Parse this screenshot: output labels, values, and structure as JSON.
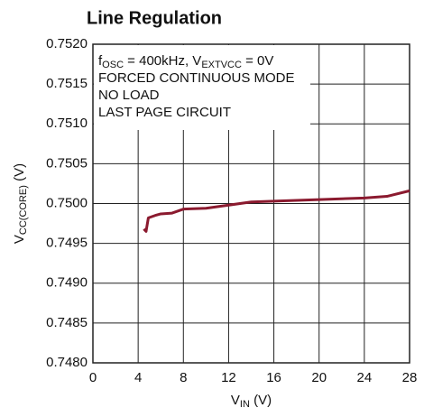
{
  "chart_data": {
    "type": "line",
    "title": "Line Regulation",
    "x_label": [
      "V",
      "IN",
      " (V)"
    ],
    "y_label": [
      "V",
      "CC(CORE)",
      " (V)"
    ],
    "annotations": [
      [
        "f",
        "OSC",
        " = 400kHz, V",
        "EXTVCC",
        " = 0V"
      ],
      [
        "FORCED CONTINUOUS MODE"
      ],
      [
        "NO LOAD"
      ],
      [
        "LAST PAGE CIRCUIT"
      ]
    ],
    "xlim": [
      0,
      28
    ],
    "xticks": [
      0,
      4,
      8,
      12,
      16,
      20,
      24,
      28
    ],
    "ylim": [
      0.748,
      0.752
    ],
    "yticks": [
      {
        "value": 0.748,
        "label": "0.7480"
      },
      {
        "value": 0.7485,
        "label": "0.7485"
      },
      {
        "value": 0.749,
        "label": "0.7490"
      },
      {
        "value": 0.7495,
        "label": "0.7495"
      },
      {
        "value": 0.75,
        "label": "0.7500"
      },
      {
        "value": 0.7505,
        "label": "0.7505"
      },
      {
        "value": 0.751,
        "label": "0.7510"
      },
      {
        "value": 0.7515,
        "label": "0.7515"
      },
      {
        "value": 0.752,
        "label": "0.7520"
      }
    ],
    "grid": true,
    "series": [
      {
        "color": "#8b1a2f",
        "x": [
          4.5,
          4.7,
          4.9,
          5.5,
          6,
          7,
          8,
          10,
          12,
          14,
          16,
          20,
          24,
          26,
          28
        ],
        "values": [
          0.74968,
          0.74965,
          0.74982,
          0.74985,
          0.74987,
          0.74988,
          0.74993,
          0.74994,
          0.74998,
          0.75002,
          0.75003,
          0.75005,
          0.75007,
          0.75009,
          0.75016
        ]
      }
    ]
  }
}
